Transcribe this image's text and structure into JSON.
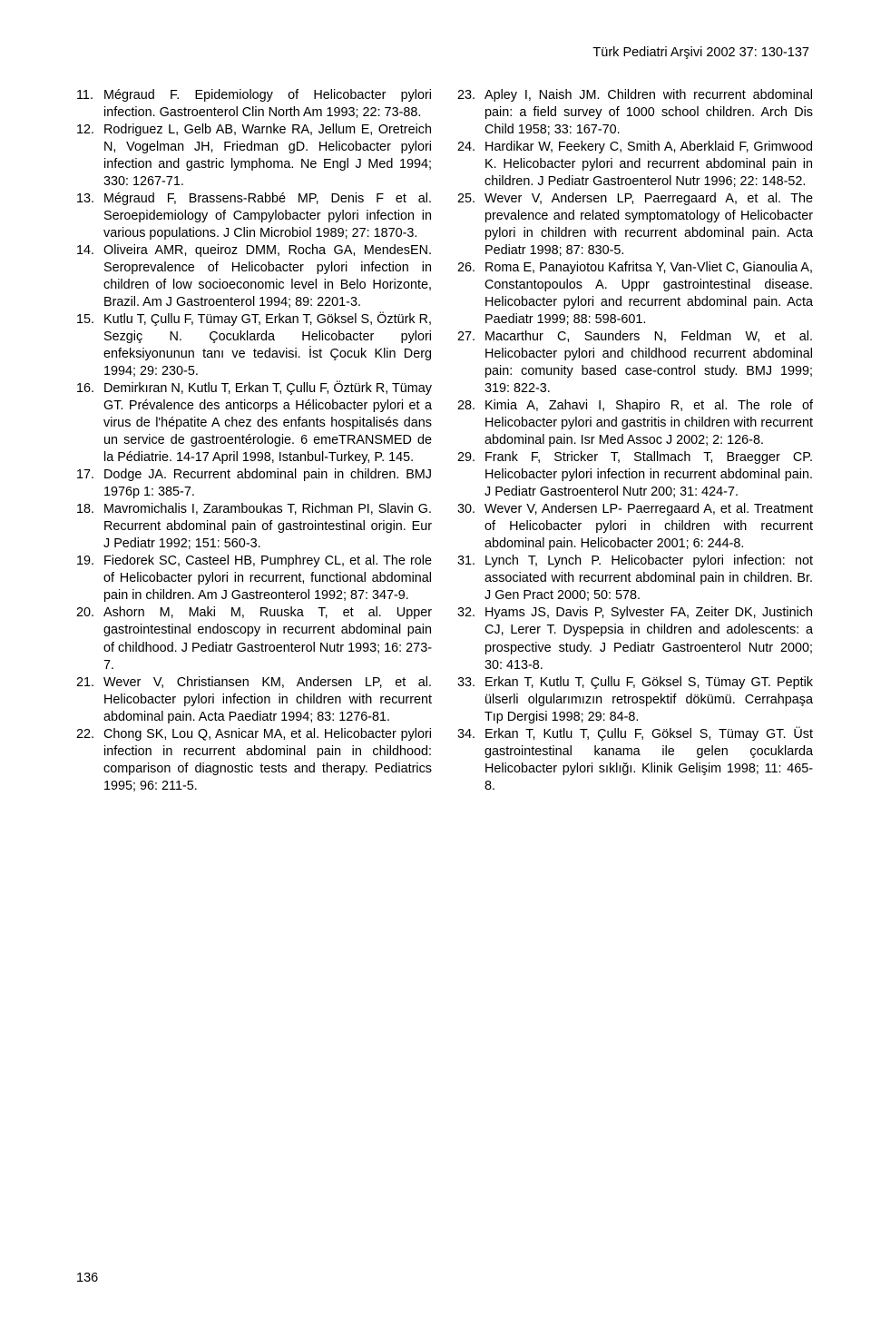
{
  "running_head": "Türk Pediatri Arşivi 2002 37: 130-137",
  "page_number": "136",
  "references_left": [
    {
      "num": "11.",
      "text": "Mégraud F. Epidemiology of Helicobacter pylori infection. Gastroenterol Clin North Am 1993; 22: 73-88."
    },
    {
      "num": "12.",
      "text": "Rodriguez L, Gelb AB, Warnke RA, Jellum E, Oretreich N, Vogelman JH, Friedman gD. Helicobacter pylori infection and gastric lymphoma. Ne Engl J Med 1994; 330: 1267-71."
    },
    {
      "num": "13.",
      "text": "Mégraud F, Brassens-Rabbé MP, Denis F et al. Seroepidemiology of Campylobacter pylori infection in various populations. J Clin Microbiol 1989; 27: 1870-3."
    },
    {
      "num": "14.",
      "text": "Oliveira AMR, queiroz DMM, Rocha GA, MendesEN. Seroprevalence of Helicobacter pylori infection in children of low socioeconomic level in Belo Horizonte, Brazil. Am J Gastroenterol 1994; 89: 2201-3."
    },
    {
      "num": "15.",
      "text": "Kutlu T, Çullu F, Tümay GT, Erkan T, Göksel S, Öztürk R, Sezgiç N. Çocuklarda Helicobacter pylori enfeksiyonunun tanı ve tedavisi. İst Çocuk Klin Derg 1994; 29: 230-5."
    },
    {
      "num": "16.",
      "text": "Demirkıran N, Kutlu T, Erkan T, Çullu F, Öztürk R, Tümay GT. Prévalence des anticorps a Hélicobacter pylori et a virus de l'hépatite A chez des enfants hospitalisés dans un service de gastroentérologie. 6 emeTRANSMED de la Pédiatrie. 14-17 April 1998, Istanbul-Turkey, P. 145."
    },
    {
      "num": "17.",
      "text": "Dodge JA. Recurrent abdominal pain in children. BMJ 1976p 1: 385-7."
    },
    {
      "num": "18.",
      "text": "Mavromichalis I, Zaramboukas T, Richman PI, Slavin G. Recurrent abdominal pain of gastrointestinal origin. Eur J Pediatr 1992; 151: 560-3."
    },
    {
      "num": "19.",
      "text": "Fiedorek SC, Casteel HB, Pumphrey CL, et al. The role of Helicobacter pylori in recurrent, functional abdominal pain in children. Am J Gastreonterol 1992; 87: 347-9."
    },
    {
      "num": "20.",
      "text": "Ashorn M, Maki M, Ruuska T, et al. Upper gastrointestinal endoscopy in recurrent abdominal pain of childhood. J Pediatr Gastroenterol Nutr 1993; 16: 273-7."
    },
    {
      "num": "21.",
      "text": "Wever V, Christiansen KM, Andersen LP, et al. Helicobacter pylori infection in children with recurrent abdominal pain. Acta Paediatr 1994; 83: 1276-81."
    },
    {
      "num": "22.",
      "text": "Chong SK, Lou Q, Asnicar MA, et al. Helicobacter pylori infection in recurrent abdominal pain in childhood: comparison of diagnostic tests and therapy. Pediatrics 1995; 96: 211-5."
    }
  ],
  "references_right": [
    {
      "num": "23.",
      "text": "Apley I, Naish JM. Children with recurrent abdominal pain: a field survey of 1000 school children. Arch Dis Child 1958; 33: 167-70."
    },
    {
      "num": "24.",
      "text": "Hardikar W, Feekery C, Smith A, Aberklaid F, Grimwood K. Helicobacter pylori and recurrent abdominal pain in children. J Pediatr Gastroenterol Nutr 1996; 22: 148-52."
    },
    {
      "num": "25.",
      "text": "Wever V, Andersen LP, Paerregaard A, et al. The prevalence and related symptomatology of Helicobacter pylori in children with recurrent abdominal pain. Acta Pediatr 1998; 87: 830-5."
    },
    {
      "num": "26.",
      "text": "Roma E, Panayiotou Kafritsa Y, Van-Vliet C, Gianoulia A, Constantopoulos A. Uppr gastrointestinal disease. Helicobacter pylori and recurrent abdominal pain. Acta Paediatr 1999; 88: 598-601."
    },
    {
      "num": "27.",
      "text": "Macarthur C, Saunders N, Feldman W, et al. Helicobacter pylori and childhood recurrent abdominal pain: comunity based case-control study. BMJ 1999; 319: 822-3."
    },
    {
      "num": "28.",
      "text": "Kimia A, Zahavi I, Shapiro R, et al. The role of Helicobacter pylori and gastritis in children with recurrent abdominal pain. Isr Med Assoc J 2002; 2: 126-8."
    },
    {
      "num": "29.",
      "text": "Frank F, Stricker T, Stallmach T, Braegger CP. Helicobacter pylori infection in recurrent abdominal pain. J Pediatr Gastroenterol Nutr 200; 31: 424-7."
    },
    {
      "num": "30.",
      "text": "Wever V, Andersen LP- Paerregaard A, et al. Treatment of Helicobacter pylori in children with recurrent abdominal pain. Helicobacter 2001; 6: 244-8."
    },
    {
      "num": "31.",
      "text": "Lynch T, Lynch P. Helicobacter pylori infection: not associated with recurrent abdominal pain in children. Br. J Gen Pract 2000; 50: 578."
    },
    {
      "num": "32.",
      "text": "Hyams JS, Davis P, Sylvester FA, Zeiter DK, Justinich CJ, Lerer T. Dyspepsia in children and adolescents: a prospective study. J Pediatr Gastroenterol Nutr 2000; 30: 413-8."
    },
    {
      "num": "33.",
      "text": "Erkan T, Kutlu T, Çullu F, Göksel S, Tümay GT. Peptik ülserli olgularımızın retrospektif dökümü. Cerrahpaşa Tıp Dergisi 1998; 29: 84-8."
    },
    {
      "num": "34.",
      "text": "Erkan T, Kutlu T, Çullu F, Göksel S, Tümay GT. Üst gastrointestinal kanama ile gelen çocuklarda Helicobacter pylori sıklığı. Klinik Gelişim 1998; 11: 465-8."
    }
  ]
}
